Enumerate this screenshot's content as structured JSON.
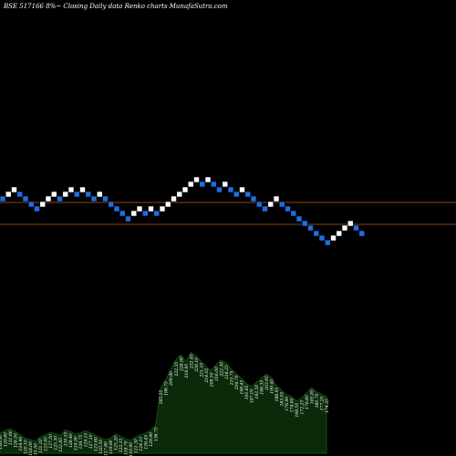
{
  "chart_data": {
    "type": "renko",
    "title": "BSE 517166  8%~  Closing Daily data  Renko  charts MunafaSutra.com",
    "colors": {
      "background": "#000000",
      "up_brick": "#ffffff",
      "down_brick": "#1e6fe0",
      "reference_line": "#8b4513",
      "volume_fill": "#0a2a0a",
      "volume_stroke": "#1a5a1a",
      "text": "#ffffff"
    },
    "reference_levels": [
      222,
      246
    ],
    "bricks": [
      {
        "dir": "down",
        "level": 218
      },
      {
        "dir": "up",
        "level": 213
      },
      {
        "dir": "up",
        "level": 208
      },
      {
        "dir": "down",
        "level": 213
      },
      {
        "dir": "down",
        "level": 218
      },
      {
        "dir": "down",
        "level": 224
      },
      {
        "dir": "down",
        "level": 229
      },
      {
        "dir": "up",
        "level": 224
      },
      {
        "dir": "up",
        "level": 218
      },
      {
        "dir": "up",
        "level": 213
      },
      {
        "dir": "down",
        "level": 218
      },
      {
        "dir": "up",
        "level": 213
      },
      {
        "dir": "up",
        "level": 208
      },
      {
        "dir": "down",
        "level": 213
      },
      {
        "dir": "up",
        "level": 208
      },
      {
        "dir": "down",
        "level": 213
      },
      {
        "dir": "down",
        "level": 218
      },
      {
        "dir": "up",
        "level": 213
      },
      {
        "dir": "down",
        "level": 218
      },
      {
        "dir": "down",
        "level": 224
      },
      {
        "dir": "down",
        "level": 229
      },
      {
        "dir": "down",
        "level": 234
      },
      {
        "dir": "down",
        "level": 240
      },
      {
        "dir": "up",
        "level": 234
      },
      {
        "dir": "up",
        "level": 229
      },
      {
        "dir": "down",
        "level": 234
      },
      {
        "dir": "up",
        "level": 229
      },
      {
        "dir": "down",
        "level": 234
      },
      {
        "dir": "up",
        "level": 229
      },
      {
        "dir": "up",
        "level": 224
      },
      {
        "dir": "up",
        "level": 218
      },
      {
        "dir": "up",
        "level": 213
      },
      {
        "dir": "up",
        "level": 208
      },
      {
        "dir": "up",
        "level": 202
      },
      {
        "dir": "up",
        "level": 197
      },
      {
        "dir": "down",
        "level": 202
      },
      {
        "dir": "up",
        "level": 197
      },
      {
        "dir": "down",
        "level": 202
      },
      {
        "dir": "down",
        "level": 208
      },
      {
        "dir": "up",
        "level": 202
      },
      {
        "dir": "down",
        "level": 208
      },
      {
        "dir": "down",
        "level": 213
      },
      {
        "dir": "up",
        "level": 208
      },
      {
        "dir": "down",
        "level": 213
      },
      {
        "dir": "down",
        "level": 218
      },
      {
        "dir": "down",
        "level": 224
      },
      {
        "dir": "down",
        "level": 229
      },
      {
        "dir": "up",
        "level": 224
      },
      {
        "dir": "up",
        "level": 218
      },
      {
        "dir": "down",
        "level": 224
      },
      {
        "dir": "down",
        "level": 229
      },
      {
        "dir": "down",
        "level": 234
      },
      {
        "dir": "down",
        "level": 240
      },
      {
        "dir": "down",
        "level": 245
      },
      {
        "dir": "down",
        "level": 250
      },
      {
        "dir": "down",
        "level": 256
      },
      {
        "dir": "down",
        "level": 261
      },
      {
        "dir": "down",
        "level": 266
      },
      {
        "dir": "up",
        "level": 261
      },
      {
        "dir": "up",
        "level": 256
      },
      {
        "dir": "up",
        "level": 250
      },
      {
        "dir": "up",
        "level": 245
      },
      {
        "dir": "down",
        "level": 250
      },
      {
        "dir": "down",
        "level": 256
      }
    ],
    "volume_labels": [
      "126.50",
      "129.80",
      "131.90",
      "128.50",
      "124.40",
      "120.10",
      "118.00",
      "115.50",
      "121.20",
      "123.95",
      "127.50",
      "125.30",
      "122.85",
      "130.55",
      "128.40",
      "124.90",
      "126.75",
      "129.15",
      "127.10",
      "123.60",
      "120.50",
      "117.80",
      "119.90",
      "125.20",
      "122.15",
      "118.70",
      "116.90",
      "121.30",
      "124.10",
      "126.45",
      "129.90",
      "136.75",
      "185.55",
      "196.75",
      "209.90",
      "222.35",
      "228.90",
      "219.95",
      "232.40",
      "228.10",
      "221.10",
      "214.05",
      "208.50",
      "216.00",
      "222.30",
      "218.25",
      "210.75",
      "204.70",
      "198.45",
      "191.65",
      "187.05",
      "192.50",
      "198.35",
      "203.95",
      "199.40",
      "188.95",
      "183.05",
      "176.90",
      "174.80",
      "168.50",
      "172.25",
      "178.80",
      "185.85",
      "180.70",
      "177.20",
      "174.25"
    ]
  }
}
